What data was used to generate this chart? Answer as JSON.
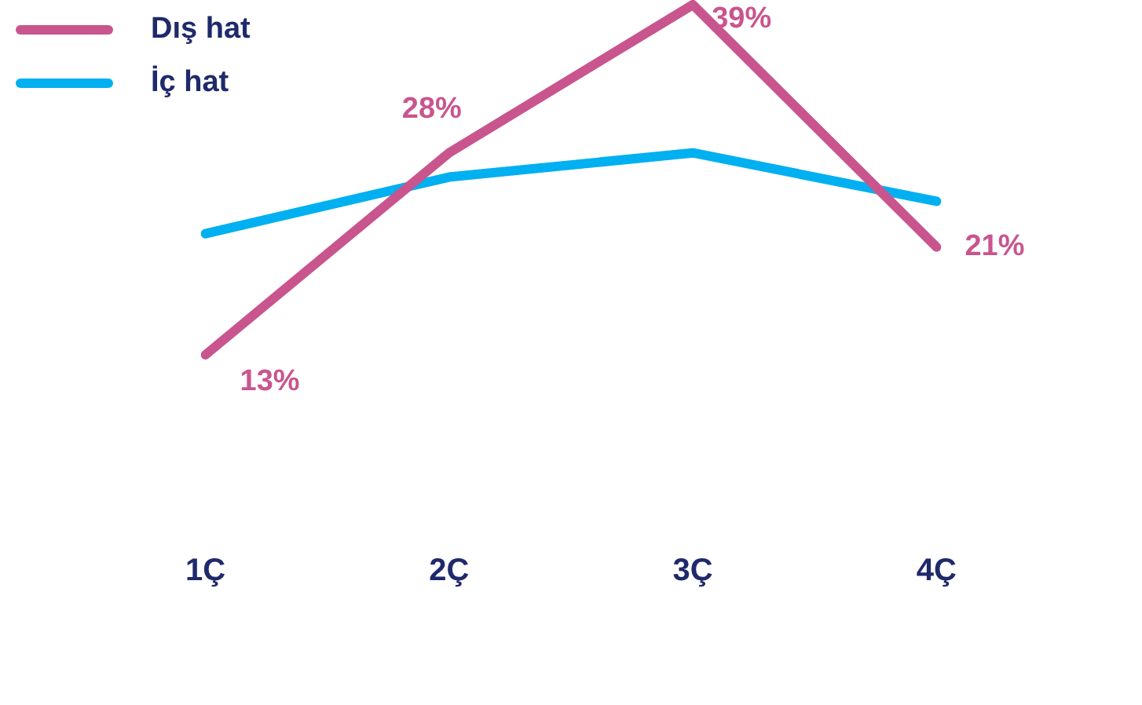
{
  "chart_data": {
    "type": "line",
    "categories": [
      "1Ç",
      "2Ç",
      "3Ç",
      "4Ç"
    ],
    "legend": "top left",
    "marker": "none",
    "series": [
      {
        "name": "Dış hat",
        "color": "#c9558e",
        "values": [
          13,
          28,
          39,
          21
        ],
        "value_labels": [
          "13%",
          "28%",
          "39%",
          "21%"
        ]
      },
      {
        "name": "İç hat",
        "color": "#00b0f0",
        "values": [
          22,
          26.2,
          28,
          24.4
        ]
      }
    ]
  }
}
